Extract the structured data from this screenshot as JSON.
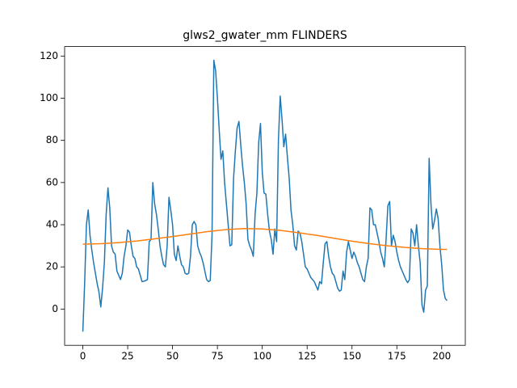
{
  "chart_data": {
    "type": "line",
    "title": "glws2_gwater_mm FLINDERS",
    "series": [
      {
        "color": "#1f77b4",
        "values": [
          -10.7,
          12,
          40,
          47,
          35,
          28,
          22,
          17,
          12,
          8,
          1,
          10,
          22,
          45,
          57.5,
          48,
          30,
          27,
          26,
          18,
          16,
          14,
          17,
          25,
          30,
          37.5,
          36.5,
          30,
          25,
          24,
          20,
          19,
          16,
          13,
          13.2,
          13.5,
          14,
          32,
          33,
          60,
          50,
          45,
          38,
          30,
          25,
          21,
          20,
          30,
          53,
          47,
          40,
          26,
          23,
          30,
          25,
          21,
          20,
          17,
          16.5,
          17,
          25,
          40,
          41.5,
          40,
          30,
          27,
          25,
          22,
          18,
          14,
          13,
          13.5,
          35,
          118,
          113,
          100,
          85,
          71,
          75,
          60,
          50,
          40,
          30,
          30.5,
          62,
          75,
          86,
          89,
          78,
          68,
          60,
          50,
          33,
          30,
          28,
          25,
          45,
          55,
          79,
          88,
          65,
          55,
          54.5,
          45,
          37,
          33,
          26,
          38,
          32,
          80,
          101,
          90,
          77,
          83,
          72,
          62,
          47,
          40,
          30,
          28,
          37,
          36,
          32,
          26,
          20,
          19,
          17,
          15,
          14,
          13,
          11,
          9,
          13,
          12,
          22,
          31,
          32,
          25,
          20,
          17,
          16,
          13,
          10,
          8.5,
          9,
          18,
          14,
          27,
          32,
          28,
          24,
          27,
          25,
          22,
          20,
          17,
          14,
          13,
          20,
          24,
          48,
          47,
          40,
          40,
          36,
          32,
          27,
          24,
          20,
          33,
          49,
          51,
          30,
          35,
          32,
          27,
          23,
          20,
          18,
          16,
          14,
          12.5,
          14,
          38,
          36,
          30,
          40,
          30,
          22,
          2,
          -1.5,
          9,
          11,
          71.5,
          50,
          38,
          42,
          47.5,
          43,
          30,
          21,
          9,
          5,
          4
        ]
      },
      {
        "color": "#ff7f0e",
        "x": [
          0,
          10,
          20,
          30,
          40,
          50,
          60,
          70,
          80,
          90,
          100,
          110,
          120,
          130,
          140,
          150,
          160,
          170,
          180,
          190,
          200,
          203
        ],
        "values": [
          30.8,
          31.0,
          31.5,
          32.3,
          33.3,
          34.4,
          35.6,
          36.8,
          37.7,
          38.2,
          38.0,
          37.3,
          36.2,
          35.0,
          33.6,
          32.2,
          31.0,
          30.0,
          29.2,
          28.6,
          28.3,
          28.3
        ]
      }
    ],
    "xlim": [
      -10.15,
      213.15
    ],
    "xticks": [
      0,
      25,
      50,
      75,
      100,
      125,
      150,
      175,
      200
    ],
    "ylim": [
      -17.2,
      124.5
    ],
    "yticks": [
      0,
      20,
      40,
      60,
      80,
      100,
      120
    ]
  }
}
